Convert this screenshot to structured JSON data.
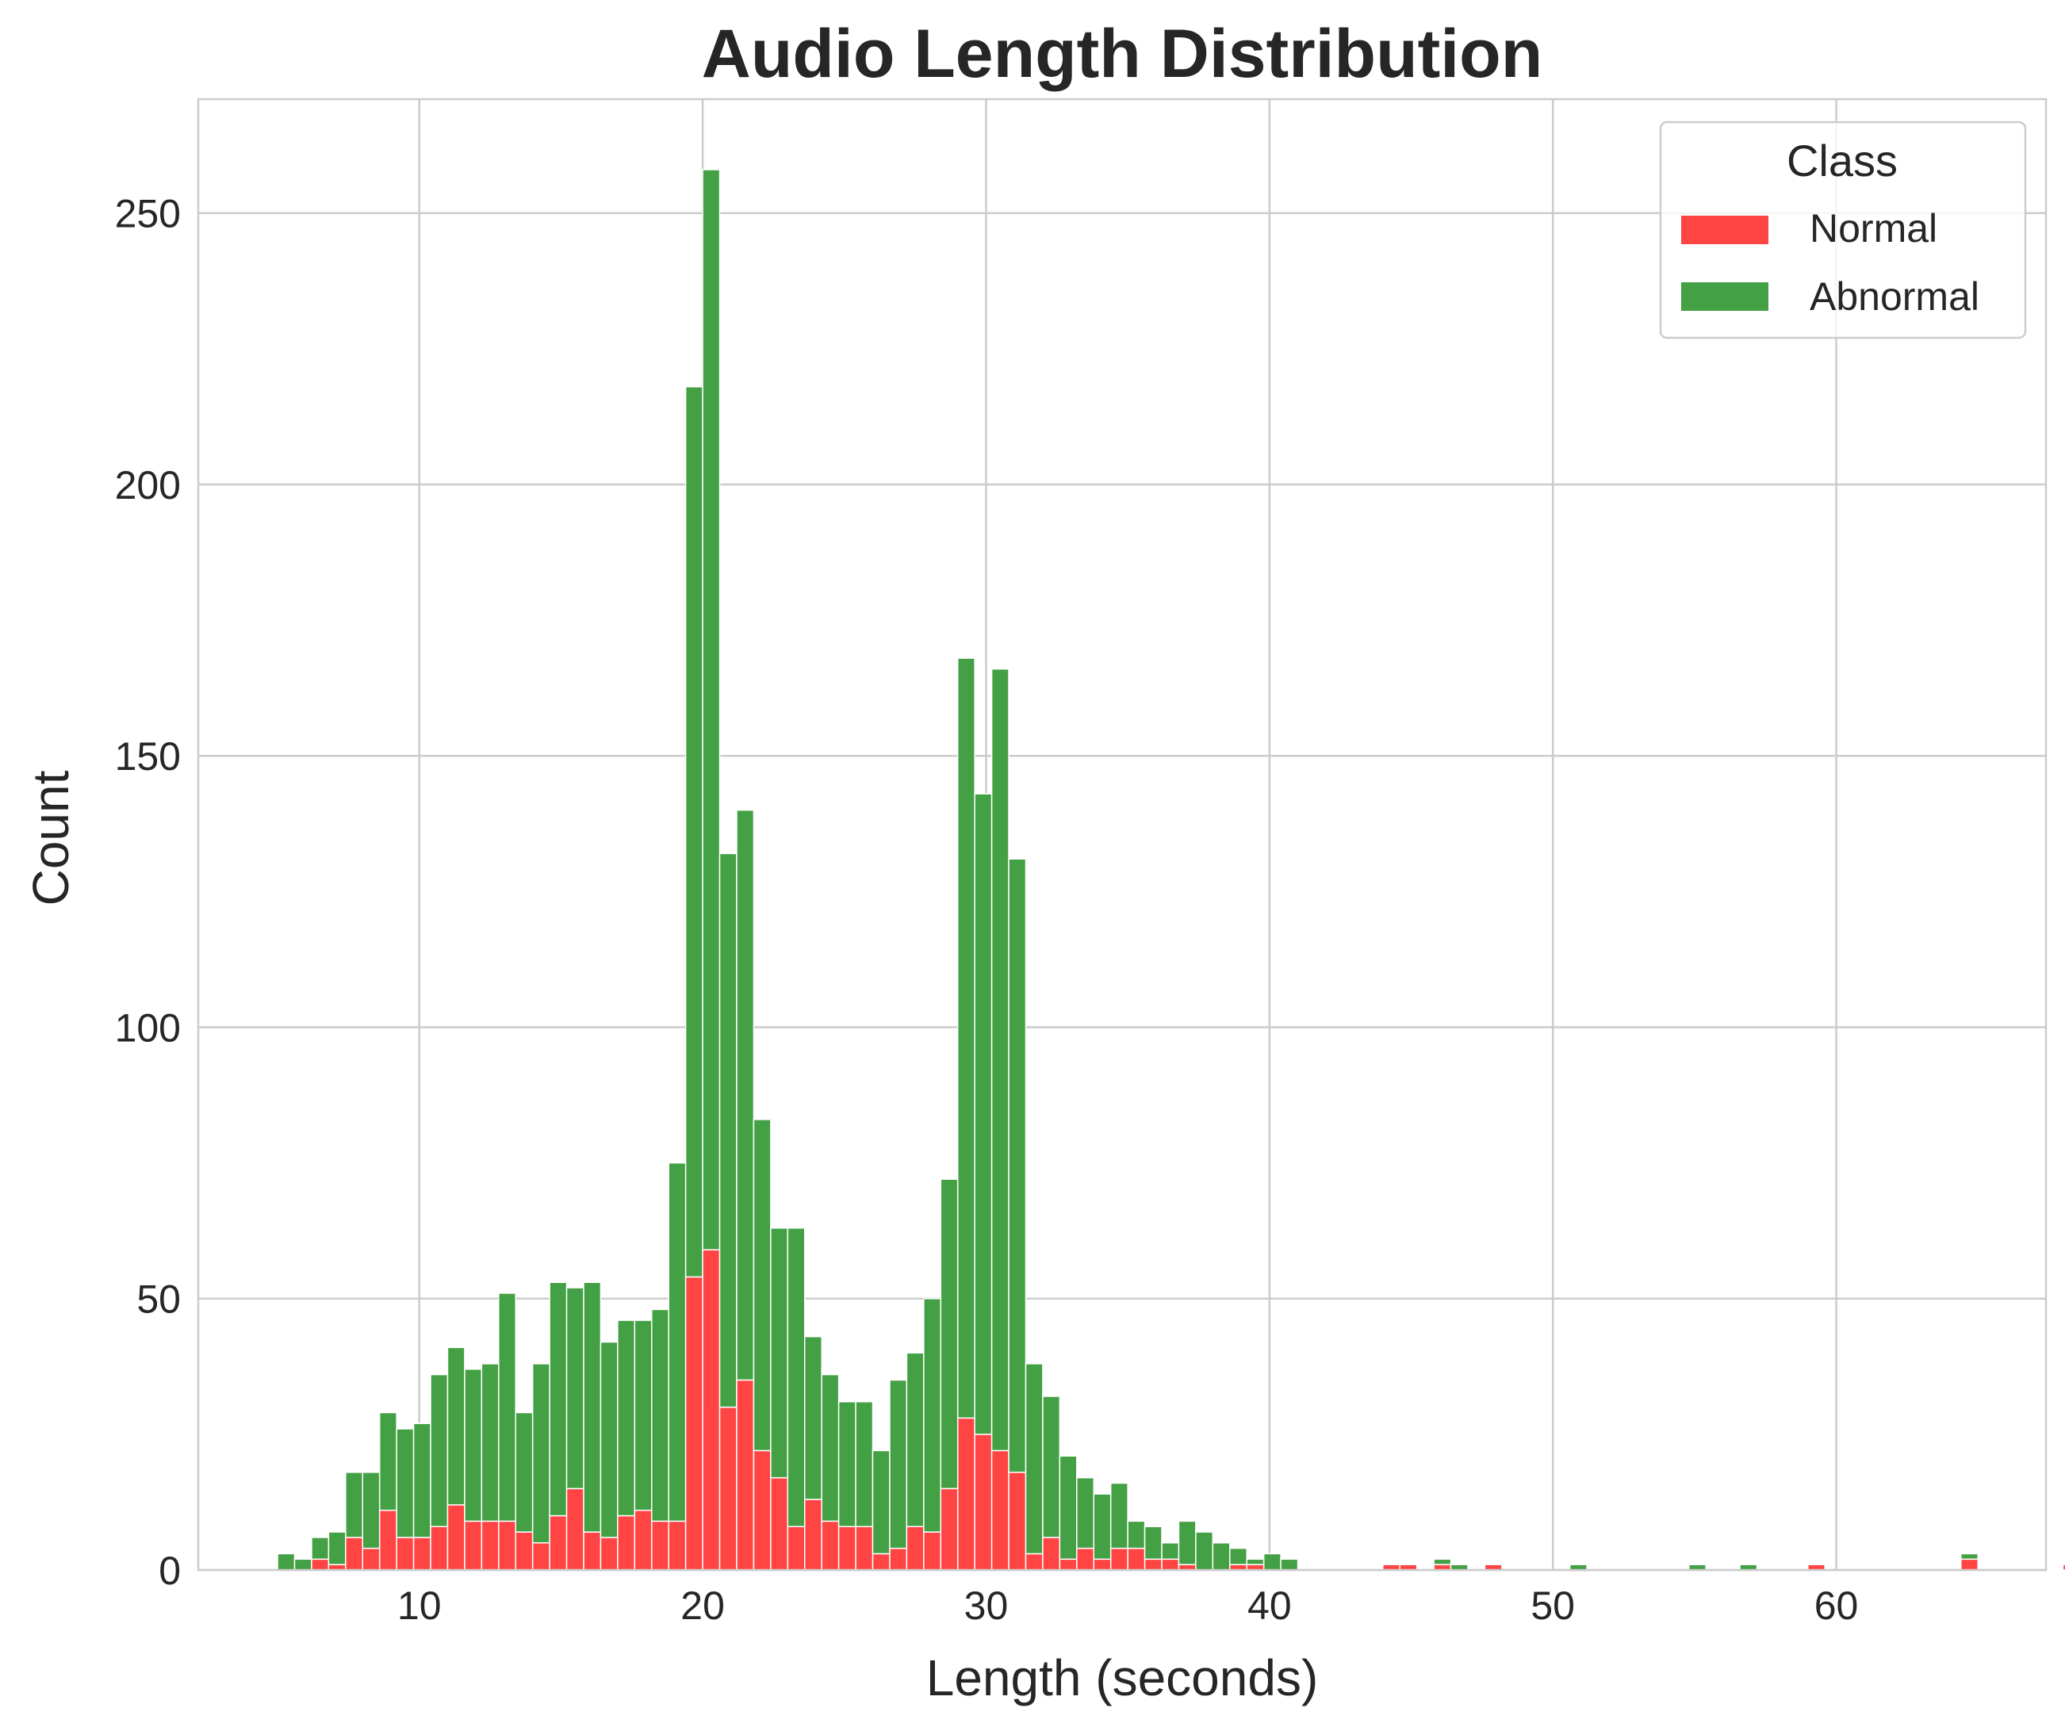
{
  "chart_data": {
    "type": "bar",
    "subtype": "stacked-histogram",
    "title": "Audio Length Distribution",
    "xlabel": "Length (seconds)",
    "ylabel": "Count",
    "xlim": [
      2.2,
      67.4
    ],
    "ylim": [
      0,
      271
    ],
    "xticks": [
      10,
      20,
      30,
      40,
      50,
      60
    ],
    "yticks": [
      0,
      50,
      100,
      150,
      200,
      250
    ],
    "grid": true,
    "bin_start": 5.0,
    "bin_width": 0.6,
    "legend": {
      "title": "Class",
      "position": "top-right",
      "entries": [
        "Normal",
        "Abnormal"
      ]
    },
    "colors": {
      "Normal": "#ff4444",
      "Abnormal": "#44a044",
      "grid": "#cccccc",
      "spine": "#cccccc",
      "text": "#262626"
    },
    "series": [
      {
        "name": "Normal",
        "values": [
          0,
          0,
          2,
          1,
          6,
          4,
          11,
          6,
          6,
          8,
          12,
          9,
          9,
          9,
          7,
          5,
          10,
          15,
          7,
          6,
          10,
          11,
          9,
          9,
          54,
          59,
          30,
          35,
          22,
          17,
          8,
          13,
          9,
          8,
          8,
          3,
          4,
          8,
          7,
          15,
          28,
          25,
          22,
          18,
          3,
          6,
          2,
          4,
          2,
          4,
          4,
          2,
          2,
          1,
          0,
          0,
          1,
          1,
          0,
          0,
          0,
          0,
          0,
          0,
          0,
          1,
          1,
          0,
          1,
          0,
          0,
          1,
          0,
          0,
          0,
          0,
          0,
          0,
          0,
          0,
          0,
          0,
          0,
          0,
          0,
          0,
          0,
          0,
          0,
          0,
          1,
          0,
          0,
          0,
          0,
          0,
          0,
          0,
          0,
          2,
          0,
          0,
          0,
          0,
          0,
          1,
          1,
          0,
          0,
          0,
          1
        ]
      },
      {
        "name": "Abnormal",
        "values": [
          3,
          2,
          4,
          6,
          12,
          14,
          18,
          20,
          21,
          28,
          29,
          28,
          29,
          42,
          22,
          33,
          43,
          37,
          46,
          36,
          36,
          35,
          39,
          66,
          164,
          199,
          102,
          105,
          61,
          46,
          55,
          30,
          27,
          23,
          23,
          19,
          31,
          32,
          43,
          57,
          140,
          118,
          144,
          113,
          35,
          26,
          19,
          13,
          12,
          12,
          5,
          6,
          3,
          8,
          7,
          5,
          3,
          1,
          3,
          2,
          0,
          0,
          0,
          0,
          0,
          0,
          0,
          0,
          1,
          1,
          0,
          0,
          0,
          0,
          0,
          0,
          1,
          0,
          0,
          0,
          0,
          0,
          0,
          1,
          0,
          0,
          1,
          0,
          0,
          0,
          0,
          0,
          0,
          0,
          0,
          0,
          0,
          0,
          0,
          1,
          0,
          0,
          0,
          0,
          0,
          0,
          0,
          0,
          0,
          0,
          0
        ]
      }
    ]
  }
}
